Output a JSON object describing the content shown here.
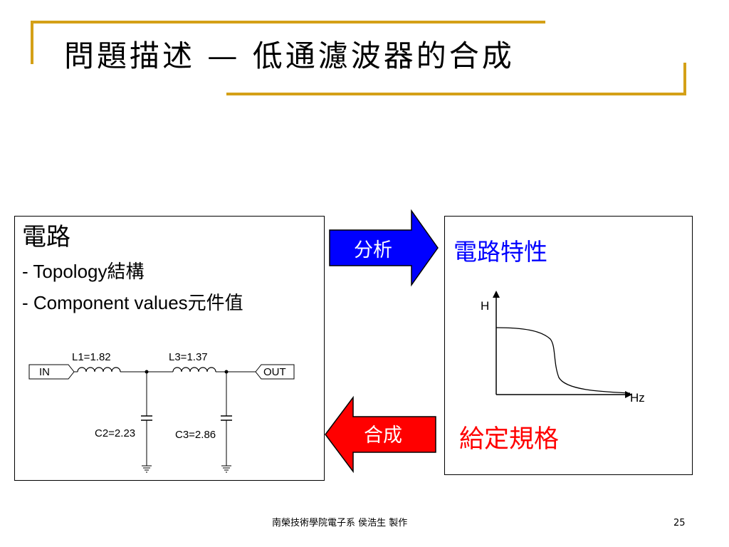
{
  "title": "問題描述 — 低通濾波器的合成",
  "circuit_box": {
    "heading": "電路",
    "line1": "- Topology結構",
    "line2": "- Component values元件值",
    "circuit": {
      "input_label": "IN",
      "output_label": "OUT",
      "l1": "L1=1.82",
      "l3": "L3=1.37",
      "c2": "C2=2.23",
      "c3": "C3=2.86"
    }
  },
  "analysis_arrow": {
    "label": "分析",
    "color": "#0000ff"
  },
  "synthesis_arrow": {
    "label": "合成",
    "color": "#ff0000"
  },
  "response_box": {
    "heading": "電路特性",
    "heading_color": "#0000ff",
    "y_axis_label": "H",
    "x_axis_label": "Hz",
    "spec_label": "給定規格",
    "spec_color": "#ff0000"
  },
  "footer": {
    "credit": "南榮技術學院電子系 侯浩生 製作",
    "page_number": "25"
  },
  "accent_color": "#d4a017"
}
